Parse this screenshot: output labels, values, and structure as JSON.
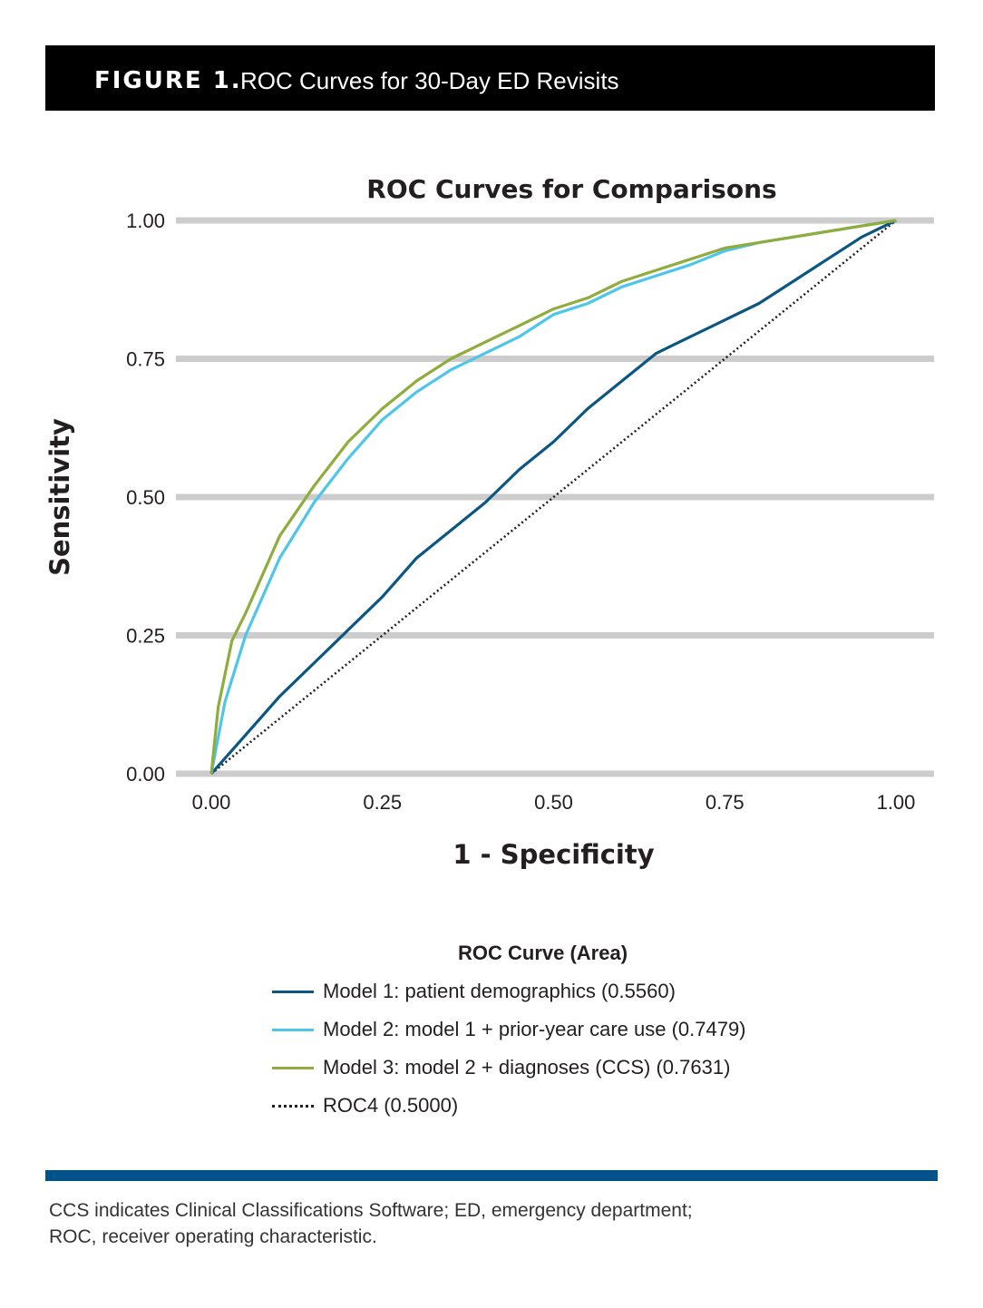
{
  "header": {
    "figure_label": "FIGURE 1.",
    "title": "ROC Curves for 30-Day ED Revisits"
  },
  "chart_data": {
    "type": "line",
    "title": "ROC Curves for Comparisons",
    "xlabel": "1 - Specificity",
    "ylabel": "Sensitivity",
    "xlim": [
      0,
      1
    ],
    "ylim": [
      0,
      1
    ],
    "x_ticks": [
      "0.00",
      "0.25",
      "0.50",
      "0.75",
      "1.00"
    ],
    "y_ticks": [
      "0.00",
      "0.25",
      "0.50",
      "0.75",
      "1.00"
    ],
    "grid": "horizontal",
    "legend_title": "ROC Curve (Area)",
    "legend_position": "bottom",
    "series": [
      {
        "name": "Model 1: patient demographics (0.5560)",
        "color": "#0b5782",
        "style": "solid",
        "x": [
          0,
          0.05,
          0.1,
          0.15,
          0.2,
          0.25,
          0.3,
          0.35,
          0.4,
          0.45,
          0.5,
          0.55,
          0.6,
          0.65,
          0.7,
          0.75,
          0.8,
          0.85,
          0.9,
          0.95,
          1.0
        ],
        "y": [
          0,
          0.07,
          0.14,
          0.2,
          0.26,
          0.32,
          0.39,
          0.44,
          0.49,
          0.55,
          0.6,
          0.66,
          0.71,
          0.76,
          0.79,
          0.82,
          0.85,
          0.89,
          0.93,
          0.97,
          1.0
        ]
      },
      {
        "name": "Model 2: model 1 + prior-year care use (0.7479)",
        "color": "#4ec6ea",
        "style": "solid",
        "x": [
          0,
          0.02,
          0.05,
          0.1,
          0.15,
          0.2,
          0.25,
          0.3,
          0.35,
          0.4,
          0.45,
          0.5,
          0.55,
          0.6,
          0.65,
          0.7,
          0.75,
          0.8,
          0.85,
          0.9,
          0.95,
          1.0
        ],
        "y": [
          0,
          0.13,
          0.25,
          0.39,
          0.49,
          0.57,
          0.64,
          0.69,
          0.73,
          0.76,
          0.79,
          0.83,
          0.85,
          0.88,
          0.9,
          0.92,
          0.945,
          0.96,
          0.97,
          0.98,
          0.99,
          1.0
        ]
      },
      {
        "name": "Model 3: model 2 + diagnoses (CCS) (0.7631)",
        "color": "#8fac3d",
        "style": "solid",
        "x": [
          0,
          0.01,
          0.03,
          0.05,
          0.1,
          0.15,
          0.2,
          0.25,
          0.3,
          0.35,
          0.4,
          0.45,
          0.5,
          0.55,
          0.6,
          0.65,
          0.7,
          0.75,
          0.8,
          0.85,
          0.9,
          0.95,
          1.0
        ],
        "y": [
          0,
          0.12,
          0.24,
          0.29,
          0.43,
          0.52,
          0.6,
          0.66,
          0.71,
          0.75,
          0.78,
          0.81,
          0.84,
          0.86,
          0.89,
          0.91,
          0.93,
          0.95,
          0.96,
          0.97,
          0.98,
          0.99,
          1.0
        ]
      },
      {
        "name": "ROC4 (0.5000)",
        "color": "#231f20",
        "style": "dotted",
        "x": [
          0,
          1
        ],
        "y": [
          0,
          1
        ]
      }
    ]
  },
  "footnote": {
    "line1": "CCS indicates Clinical Classifications Software; ED, emergency department;",
    "line2": "ROC, receiver operating characteristic."
  }
}
